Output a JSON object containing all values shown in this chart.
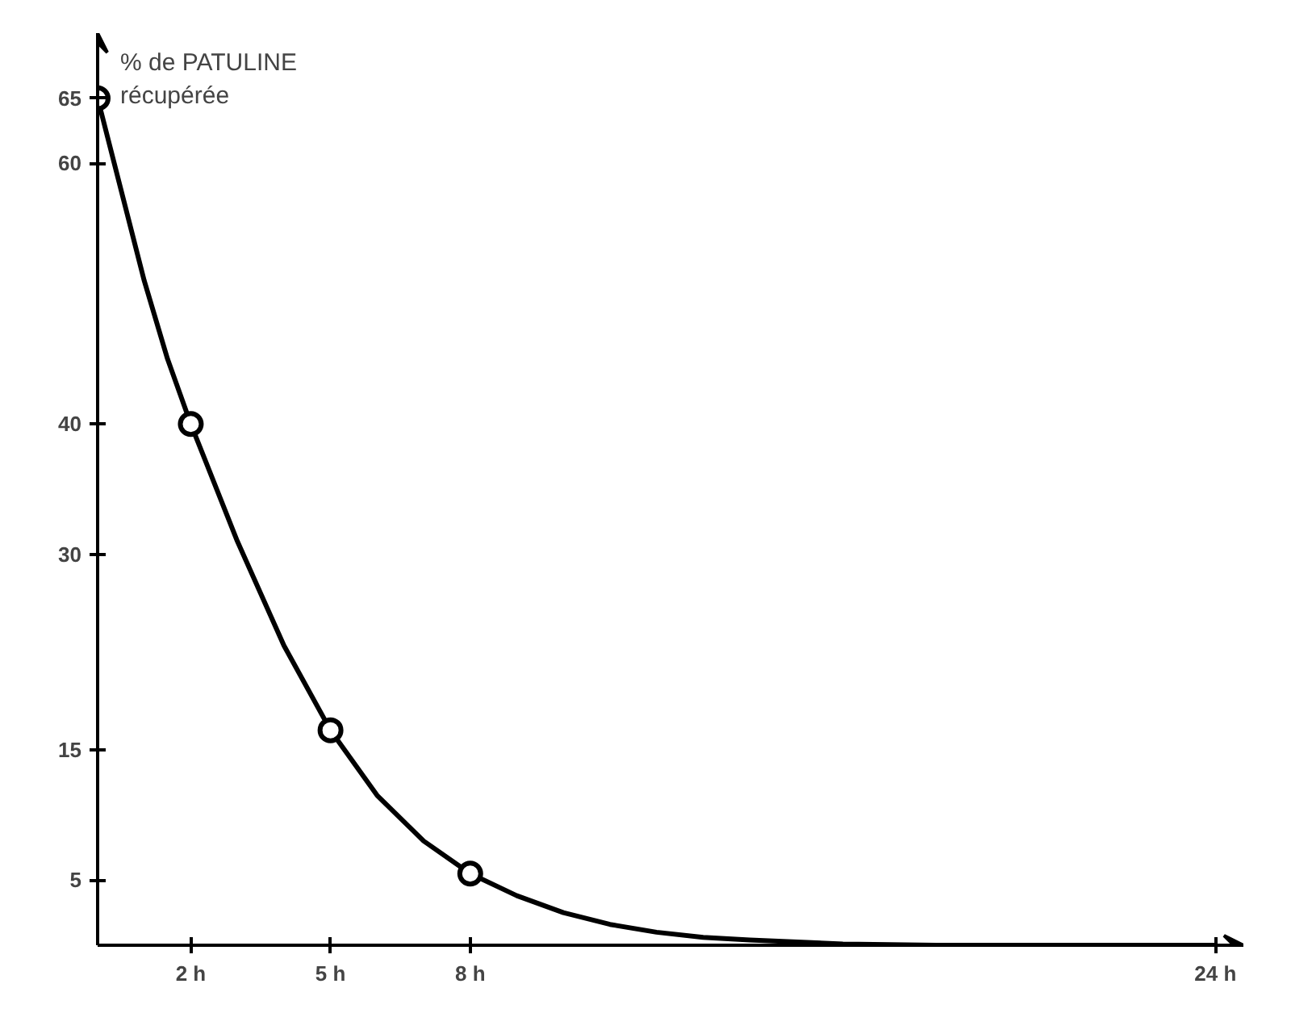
{
  "chart_data": {
    "type": "line",
    "ylabel": "% de PATULINE\nrécupérée",
    "xlim": [
      0,
      24.6
    ],
    "ylim": [
      0,
      70
    ],
    "xticks": [
      {
        "value": 2,
        "label": "2 h"
      },
      {
        "value": 5,
        "label": "5 h"
      },
      {
        "value": 8,
        "label": "8 h"
      },
      {
        "value": 24,
        "label": "24 h"
      }
    ],
    "yticks": [
      5,
      15,
      30,
      40,
      60,
      65
    ],
    "grid": false,
    "series": [
      {
        "type": "line",
        "color": "#000000",
        "line_style": "solid",
        "marker": "none",
        "x": [
          0,
          0.5,
          1,
          1.5,
          2,
          3,
          4,
          5,
          6,
          7,
          8,
          9,
          10,
          11,
          12,
          13,
          14,
          16,
          18,
          20,
          22,
          24
        ],
        "values": [
          65,
          58,
          51,
          45,
          40,
          31,
          23,
          16.5,
          11.5,
          8,
          5.5,
          3.8,
          2.5,
          1.6,
          1,
          0.6,
          0.4,
          0.1,
          0,
          0,
          0,
          0
        ]
      },
      {
        "type": "scatter",
        "color": "#000000",
        "marker": "circle",
        "x": [
          0,
          2,
          5,
          8
        ],
        "values": [
          65,
          40,
          16.5,
          5.5
        ]
      }
    ]
  }
}
